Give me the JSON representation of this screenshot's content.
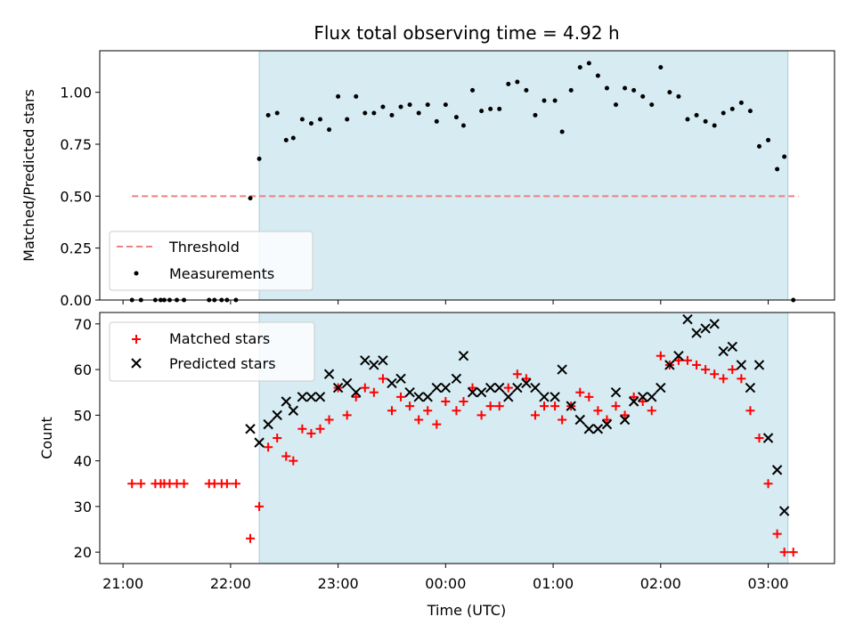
{
  "chart_data": [
    {
      "type": "scatter",
      "title": "Flux total observing time = 4.92 h",
      "xlabel": "",
      "ylabel": "Matched/Predicted stars",
      "ylim": [
        0,
        1.2
      ],
      "yticks": [
        "0.00",
        "0.25",
        "0.50",
        "0.75",
        "1.00"
      ],
      "yticks_values": [
        0,
        0.25,
        0.5,
        0.75,
        1.0
      ],
      "legend_position": "lower-left",
      "observing_window": [
        "22:16",
        "03:11"
      ],
      "threshold": {
        "name": "Threshold",
        "value": 0.5,
        "x_start": "21:05",
        "x_end": "03:17",
        "color": "#f08080",
        "style": "dashed"
      },
      "series": [
        {
          "name": "Measurements",
          "color": "#000000",
          "marker": "dot",
          "points": [
            [
              "21:05",
              0.0
            ],
            [
              "21:10",
              0.0
            ],
            [
              "21:18",
              0.0
            ],
            [
              "21:21",
              0.0
            ],
            [
              "21:23",
              0.0
            ],
            [
              "21:26",
              0.0
            ],
            [
              "21:30",
              0.0
            ],
            [
              "21:34",
              0.0
            ],
            [
              "21:48",
              0.0
            ],
            [
              "21:51",
              0.0
            ],
            [
              "21:55",
              0.0
            ],
            [
              "21:58",
              0.0
            ],
            [
              "22:03",
              0.0
            ],
            [
              "22:11",
              0.49
            ],
            [
              "22:16",
              0.68
            ],
            [
              "22:21",
              0.89
            ],
            [
              "22:26",
              0.9
            ],
            [
              "22:31",
              0.77
            ],
            [
              "22:35",
              0.78
            ],
            [
              "22:40",
              0.87
            ],
            [
              "22:45",
              0.85
            ],
            [
              "22:50",
              0.87
            ],
            [
              "22:55",
              0.82
            ],
            [
              "23:00",
              0.98
            ],
            [
              "23:05",
              0.87
            ],
            [
              "23:10",
              0.98
            ],
            [
              "23:15",
              0.9
            ],
            [
              "23:20",
              0.9
            ],
            [
              "23:25",
              0.93
            ],
            [
              "23:30",
              0.89
            ],
            [
              "23:35",
              0.93
            ],
            [
              "23:40",
              0.94
            ],
            [
              "23:45",
              0.9
            ],
            [
              "23:50",
              0.94
            ],
            [
              "23:55",
              0.86
            ],
            [
              "00:00",
              0.94
            ],
            [
              "00:06",
              0.88
            ],
            [
              "00:10",
              0.84
            ],
            [
              "00:15",
              1.01
            ],
            [
              "00:20",
              0.91
            ],
            [
              "00:25",
              0.92
            ],
            [
              "00:30",
              0.92
            ],
            [
              "00:35",
              1.04
            ],
            [
              "00:40",
              1.05
            ],
            [
              "00:45",
              1.01
            ],
            [
              "00:50",
              0.89
            ],
            [
              "00:55",
              0.96
            ],
            [
              "01:01",
              0.96
            ],
            [
              "01:05",
              0.81
            ],
            [
              "01:10",
              1.01
            ],
            [
              "01:15",
              1.12
            ],
            [
              "01:20",
              1.14
            ],
            [
              "01:25",
              1.08
            ],
            [
              "01:30",
              1.02
            ],
            [
              "01:35",
              0.94
            ],
            [
              "01:40",
              1.02
            ],
            [
              "01:45",
              1.01
            ],
            [
              "01:50",
              0.98
            ],
            [
              "01:55",
              0.94
            ],
            [
              "02:00",
              1.12
            ],
            [
              "02:05",
              1.0
            ],
            [
              "02:10",
              0.98
            ],
            [
              "02:15",
              0.87
            ],
            [
              "02:20",
              0.89
            ],
            [
              "02:25",
              0.86
            ],
            [
              "02:30",
              0.84
            ],
            [
              "02:35",
              0.9
            ],
            [
              "02:40",
              0.92
            ],
            [
              "02:45",
              0.95
            ],
            [
              "02:50",
              0.91
            ],
            [
              "02:55",
              0.74
            ],
            [
              "03:00",
              0.77
            ],
            [
              "03:05",
              0.63
            ],
            [
              "03:09",
              0.69
            ],
            [
              "03:14",
              0.0
            ]
          ]
        }
      ]
    },
    {
      "type": "scatter",
      "title": "",
      "xlabel": "Time (UTC)",
      "ylabel": "Count",
      "ylim": [
        17.5,
        72.5
      ],
      "yticks": [
        "20",
        "30",
        "40",
        "50",
        "60",
        "70"
      ],
      "yticks_values": [
        20,
        30,
        40,
        50,
        60,
        70
      ],
      "xticks": [
        "21:00",
        "22:00",
        "23:00",
        "00:00",
        "01:00",
        "02:00",
        "03:00"
      ],
      "legend_position": "upper-left",
      "observing_window": [
        "22:16",
        "03:11"
      ],
      "series": [
        {
          "name": "Matched stars",
          "color": "#ff0000",
          "marker": "plus",
          "points": [
            [
              "21:05",
              35
            ],
            [
              "21:10",
              35
            ],
            [
              "21:18",
              35
            ],
            [
              "21:21",
              35
            ],
            [
              "21:23",
              35
            ],
            [
              "21:26",
              35
            ],
            [
              "21:30",
              35
            ],
            [
              "21:34",
              35
            ],
            [
              "21:48",
              35
            ],
            [
              "21:51",
              35
            ],
            [
              "21:55",
              35
            ],
            [
              "21:58",
              35
            ],
            [
              "22:03",
              35
            ],
            [
              "22:11",
              23
            ],
            [
              "22:16",
              30
            ],
            [
              "22:21",
              43
            ],
            [
              "22:26",
              45
            ],
            [
              "22:31",
              41
            ],
            [
              "22:35",
              40
            ],
            [
              "22:40",
              47
            ],
            [
              "22:45",
              46
            ],
            [
              "22:50",
              47
            ],
            [
              "22:55",
              49
            ],
            [
              "23:00",
              56
            ],
            [
              "23:05",
              50
            ],
            [
              "23:10",
              54
            ],
            [
              "23:15",
              56
            ],
            [
              "23:20",
              55
            ],
            [
              "23:25",
              58
            ],
            [
              "23:30",
              51
            ],
            [
              "23:35",
              54
            ],
            [
              "23:40",
              52
            ],
            [
              "23:45",
              49
            ],
            [
              "23:50",
              51
            ],
            [
              "23:55",
              48
            ],
            [
              "00:00",
              53
            ],
            [
              "00:06",
              51
            ],
            [
              "00:10",
              53
            ],
            [
              "00:15",
              56
            ],
            [
              "00:20",
              50
            ],
            [
              "00:25",
              52
            ],
            [
              "00:30",
              52
            ],
            [
              "00:35",
              56
            ],
            [
              "00:40",
              59
            ],
            [
              "00:45",
              58
            ],
            [
              "00:50",
              50
            ],
            [
              "00:55",
              52
            ],
            [
              "01:01",
              52
            ],
            [
              "01:05",
              49
            ],
            [
              "01:10",
              52
            ],
            [
              "01:15",
              55
            ],
            [
              "01:20",
              54
            ],
            [
              "01:25",
              51
            ],
            [
              "01:30",
              49
            ],
            [
              "01:35",
              52
            ],
            [
              "01:40",
              50
            ],
            [
              "01:45",
              54
            ],
            [
              "01:50",
              53
            ],
            [
              "01:55",
              51
            ],
            [
              "02:00",
              63
            ],
            [
              "02:05",
              61
            ],
            [
              "02:10",
              62
            ],
            [
              "02:15",
              62
            ],
            [
              "02:20",
              61
            ],
            [
              "02:25",
              60
            ],
            [
              "02:30",
              59
            ],
            [
              "02:35",
              58
            ],
            [
              "02:40",
              60
            ],
            [
              "02:45",
              58
            ],
            [
              "02:50",
              51
            ],
            [
              "02:55",
              45
            ],
            [
              "03:00",
              35
            ],
            [
              "03:05",
              24
            ],
            [
              "03:09",
              20
            ],
            [
              "03:14",
              20
            ]
          ]
        },
        {
          "name": "Predicted stars",
          "color": "#000000",
          "marker": "x",
          "points": [
            [
              "22:11",
              47
            ],
            [
              "22:16",
              44
            ],
            [
              "22:21",
              48
            ],
            [
              "22:26",
              50
            ],
            [
              "22:31",
              53
            ],
            [
              "22:35",
              51
            ],
            [
              "22:40",
              54
            ],
            [
              "22:45",
              54
            ],
            [
              "22:50",
              54
            ],
            [
              "22:55",
              59
            ],
            [
              "23:00",
              56
            ],
            [
              "23:05",
              57
            ],
            [
              "23:10",
              55
            ],
            [
              "23:15",
              62
            ],
            [
              "23:20",
              61
            ],
            [
              "23:25",
              62
            ],
            [
              "23:30",
              57
            ],
            [
              "23:35",
              58
            ],
            [
              "23:40",
              55
            ],
            [
              "23:45",
              54
            ],
            [
              "23:50",
              54
            ],
            [
              "23:55",
              56
            ],
            [
              "00:00",
              56
            ],
            [
              "00:06",
              58
            ],
            [
              "00:10",
              63
            ],
            [
              "00:15",
              55
            ],
            [
              "00:20",
              55
            ],
            [
              "00:25",
              56
            ],
            [
              "00:30",
              56
            ],
            [
              "00:35",
              54
            ],
            [
              "00:40",
              56
            ],
            [
              "00:45",
              57
            ],
            [
              "00:50",
              56
            ],
            [
              "00:55",
              54
            ],
            [
              "01:01",
              54
            ],
            [
              "01:05",
              60
            ],
            [
              "01:10",
              52
            ],
            [
              "01:15",
              49
            ],
            [
              "01:20",
              47
            ],
            [
              "01:25",
              47
            ],
            [
              "01:30",
              48
            ],
            [
              "01:35",
              55
            ],
            [
              "01:40",
              49
            ],
            [
              "01:45",
              53
            ],
            [
              "01:50",
              54
            ],
            [
              "01:55",
              54
            ],
            [
              "02:00",
              56
            ],
            [
              "02:05",
              61
            ],
            [
              "02:10",
              63
            ],
            [
              "02:15",
              71
            ],
            [
              "02:20",
              68
            ],
            [
              "02:25",
              69
            ],
            [
              "02:30",
              70
            ],
            [
              "02:35",
              64
            ],
            [
              "02:40",
              65
            ],
            [
              "02:45",
              61
            ],
            [
              "02:50",
              56
            ],
            [
              "02:55",
              61
            ],
            [
              "03:00",
              45
            ],
            [
              "03:05",
              38
            ],
            [
              "03:09",
              29
            ]
          ]
        }
      ]
    }
  ]
}
